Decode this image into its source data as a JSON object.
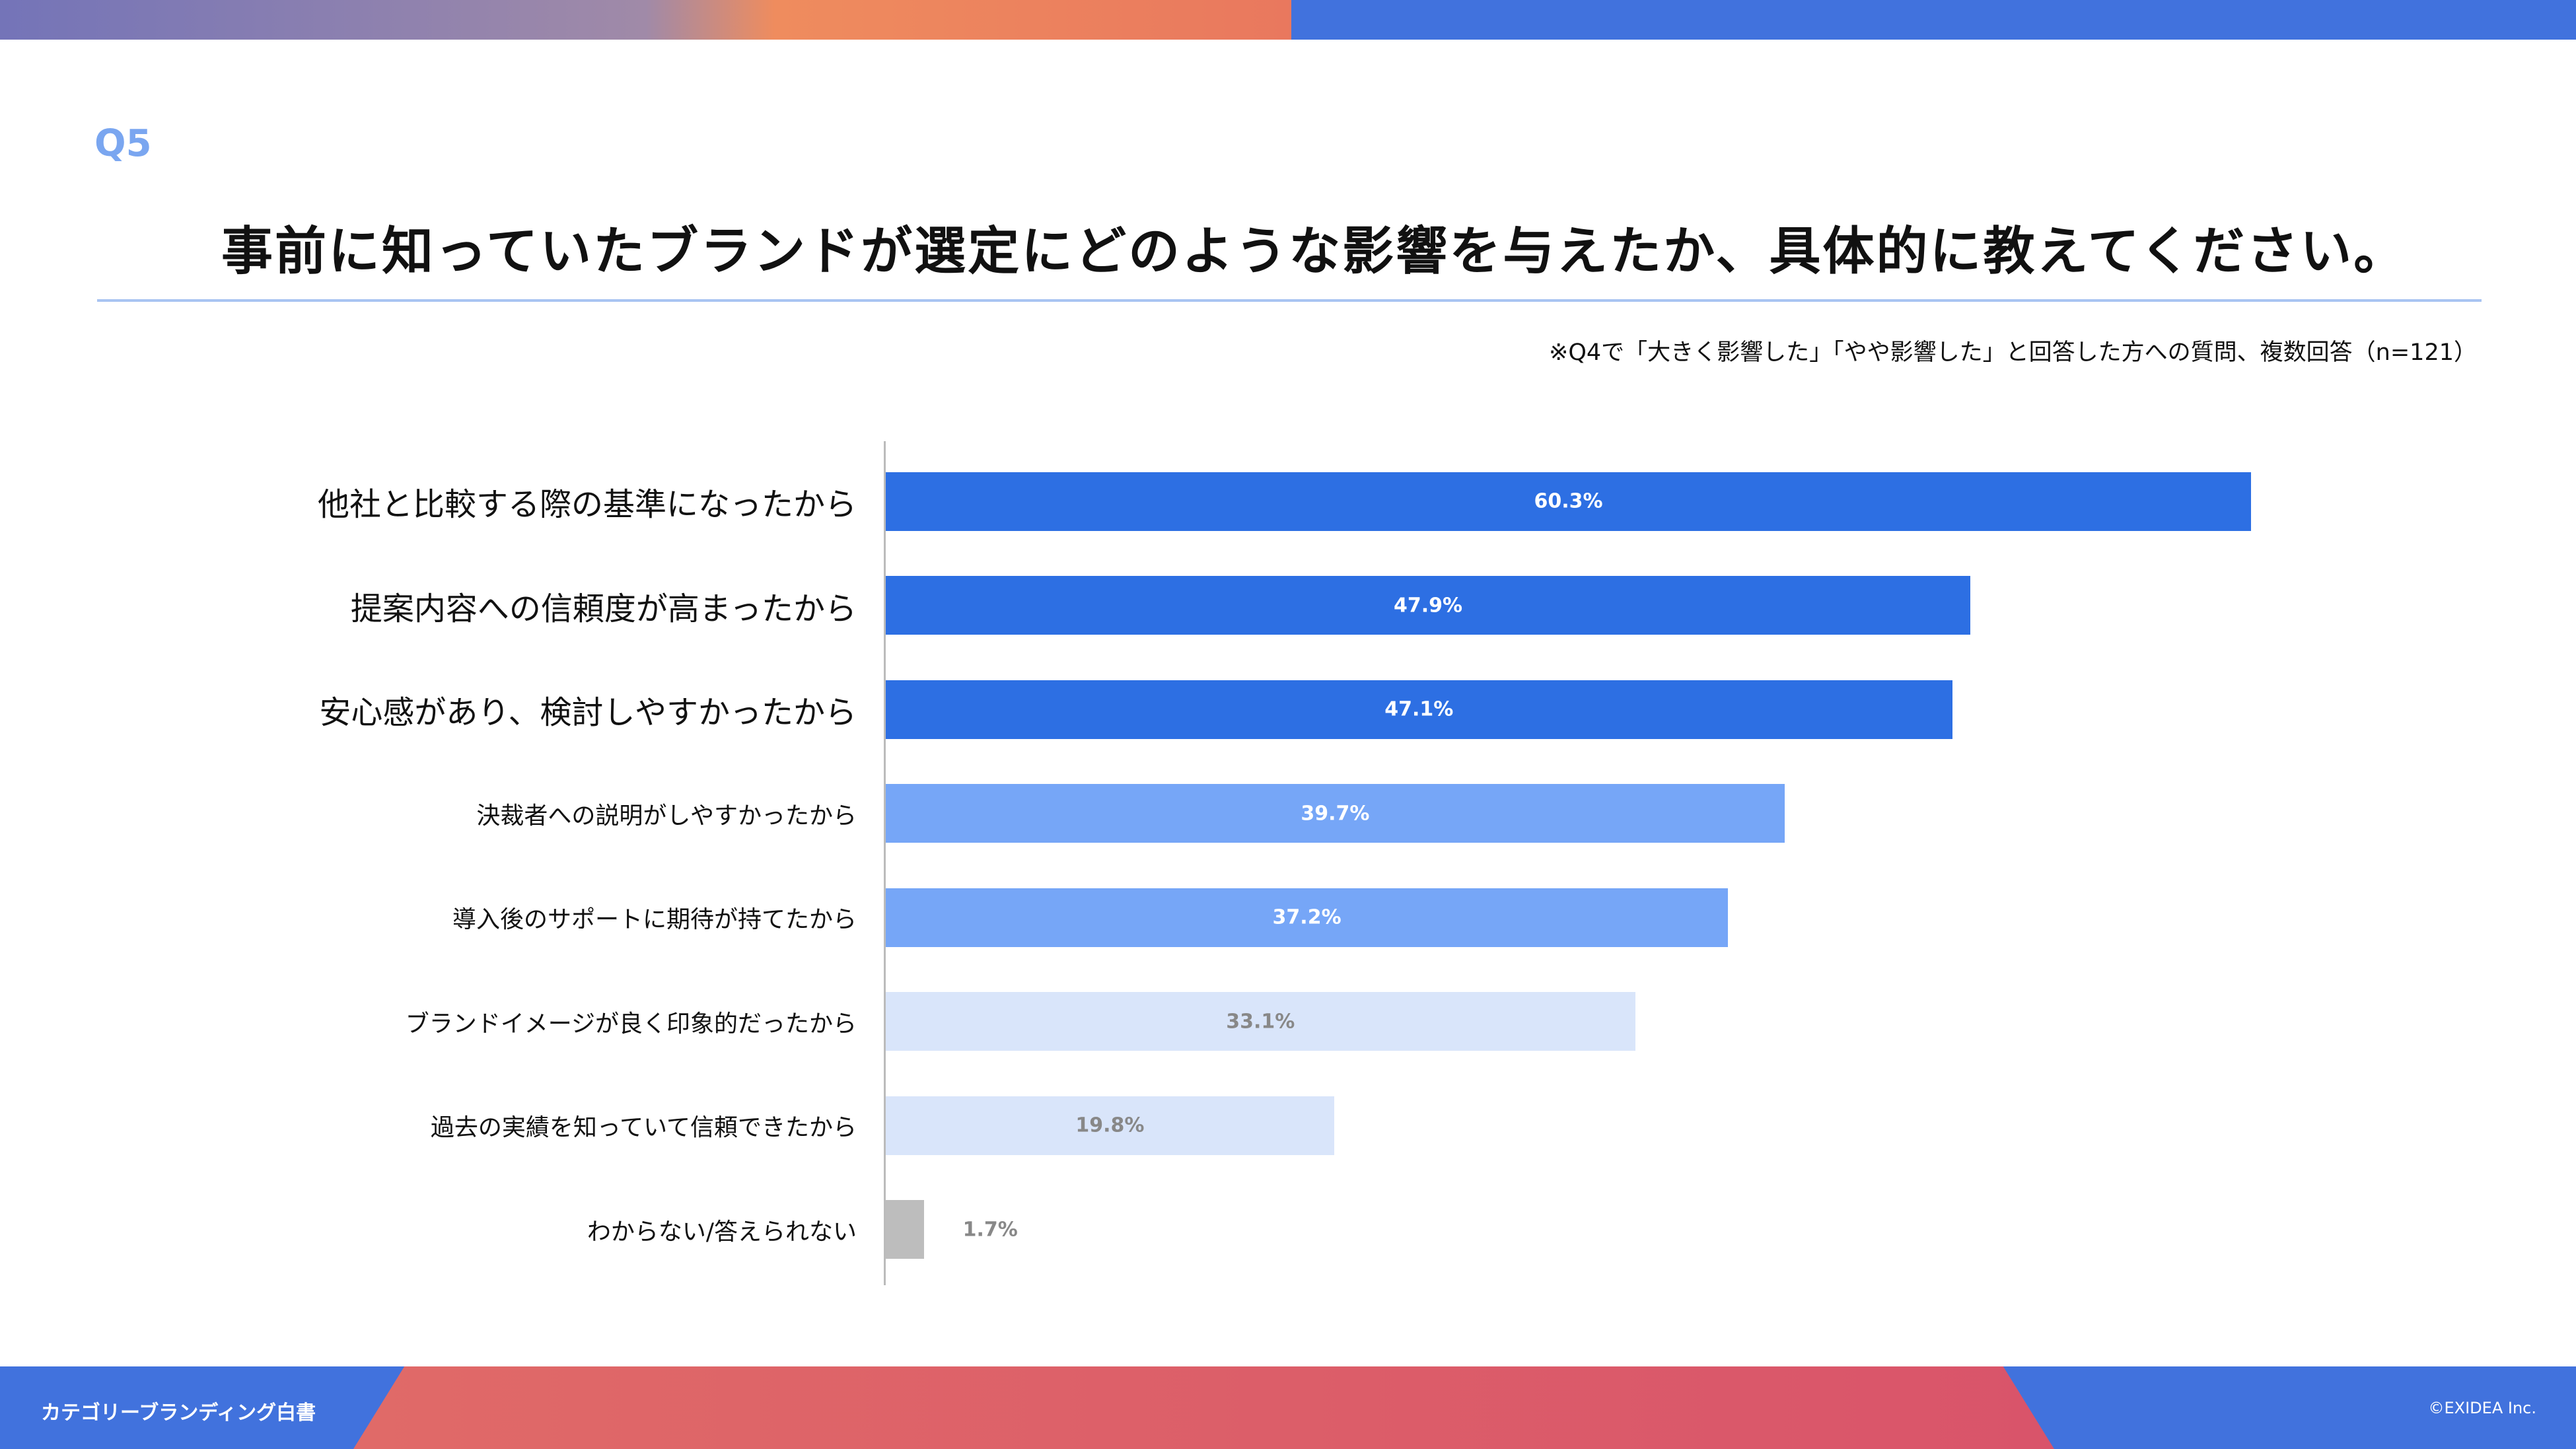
{
  "header": {
    "question_number": "Q5",
    "title": "事前に知っていたブランドが選定にどのような影響を与えたか、具体的に教えてください。",
    "note": "※Q4で「大きく影響した」「やや影響した」と回答した方への質問、複数回答（n=121）"
  },
  "colors": {
    "dark": "#2d6fe3",
    "medium": "#76a6f7",
    "light": "#d9e5fa",
    "gray": "#bdbdbd"
  },
  "chart_data": {
    "type": "bar",
    "orientation": "horizontal",
    "title": "事前に知っていたブランドが選定にどのような影響を与えたか、具体的に教えてください。",
    "categories": [
      "他社と比較する際の基準になったから",
      "提案内容への信頼度が高まったから",
      "安心感があり、検討しやすかったから",
      "決裁者への説明がしやすかったから",
      "導入後のサポートに期待が持てたから",
      "ブランドイメージが良く印象的だったから",
      "過去の実績を知っていて信頼できたから",
      "わからない/答えられない"
    ],
    "values": [
      60.3,
      47.9,
      47.1,
      39.7,
      37.2,
      33.1,
      19.8,
      1.7
    ],
    "value_labels": [
      "60.3%",
      "47.9%",
      "47.1%",
      "39.7%",
      "37.2%",
      "33.1%",
      "19.8%",
      "1.7%"
    ],
    "tiers": [
      "dark",
      "dark",
      "dark",
      "medium",
      "medium",
      "light",
      "light",
      "gray"
    ],
    "unit": "%",
    "xlim": [
      0,
      100
    ],
    "grid": false
  },
  "footer": {
    "left": "カテゴリーブランディング白書",
    "right": "©EXIDEA Inc."
  }
}
